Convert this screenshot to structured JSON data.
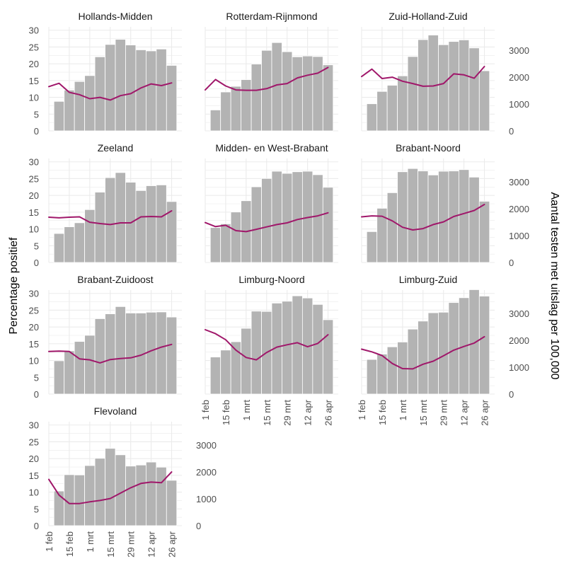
{
  "chart_data": {
    "type": "bar",
    "ylabel": "Percentage positief",
    "y2label": "Aantal testen met uitslag per 100,000",
    "xlabel": "",
    "x_ticks": [
      "1 feb",
      "15 feb",
      "1 mrt",
      "15 mrt",
      "29 mrt",
      "12 apr",
      "26 apr"
    ],
    "y_ticks": [
      "0",
      "5",
      "10",
      "15",
      "20",
      "25",
      "30"
    ],
    "y2_ticks": [
      "0",
      "1000",
      "2000",
      "3000"
    ],
    "ylim": [
      0,
      31
    ],
    "y2lim": [
      0,
      3875
    ],
    "grid": true,
    "weeks": 13,
    "colors": {
      "bar": "#b3b3b3",
      "line": "#a0176a",
      "grid": "#ebebeb"
    },
    "bar_series_name": "Aantal testen met uitslag per 100,000",
    "line_series_name": "Percentage positief",
    "facets": [
      {
        "name": "Hollands-Midden",
        "bars": [
          1100,
          1520,
          1840,
          2060,
          2760,
          3220,
          3410,
          3200,
          3020,
          2980,
          3050,
          2440
        ],
        "line": [
          13.2,
          14.2,
          11.5,
          10.8,
          9.6,
          10.0,
          9.2,
          10.5,
          11.1,
          12.8,
          14.0,
          13.5,
          14.3
        ]
      },
      {
        "name": "Rotterdam-Rijnmond",
        "bars": [
          780,
          1450,
          1660,
          1910,
          2490,
          3000,
          3290,
          2950,
          2760,
          2790,
          2770,
          2460
        ],
        "line": [
          12.2,
          15.3,
          13.4,
          12.2,
          12.1,
          12.1,
          12.6,
          13.7,
          14.1,
          15.8,
          16.6,
          17.2,
          18.9
        ]
      },
      {
        "name": "Zuid-Holland-Zuid",
        "bars": [
          1010,
          1470,
          1700,
          2050,
          2770,
          3400,
          3570,
          3210,
          3330,
          3390,
          3090,
          2240
        ],
        "line": [
          16.2,
          18.4,
          15.6,
          16.0,
          14.8,
          14.1,
          13.3,
          13.4,
          14.1,
          17.0,
          16.7,
          15.7,
          19.2
        ]
      },
      {
        "name": "Zeeland",
        "bars": [
          1080,
          1330,
          1480,
          1970,
          2620,
          3160,
          3350,
          2990,
          2680,
          2860,
          2890,
          2270
        ],
        "line": [
          13.5,
          13.3,
          13.5,
          13.6,
          12.0,
          11.6,
          11.3,
          11.8,
          11.8,
          13.6,
          13.7,
          13.6,
          15.4
        ]
      },
      {
        "name": "Midden- en West-Brabant",
        "bars": [
          1300,
          1440,
          1880,
          2300,
          2820,
          3130,
          3400,
          3320,
          3380,
          3400,
          3270,
          2800
        ],
        "line": [
          11.9,
          10.7,
          11.1,
          9.5,
          9.2,
          9.9,
          10.6,
          11.3,
          11.8,
          12.8,
          13.4,
          13.9,
          14.8
        ]
      },
      {
        "name": "Brabant-Noord",
        "bars": [
          1150,
          2020,
          2600,
          3380,
          3500,
          3410,
          3260,
          3400,
          3410,
          3460,
          3180,
          2280
        ],
        "line": [
          13.6,
          13.9,
          13.8,
          12.4,
          10.5,
          9.7,
          10.1,
          11.3,
          12.1,
          13.7,
          14.6,
          15.5,
          17.3
        ]
      },
      {
        "name": "Brabant-Zuidoost",
        "bars": [
          1240,
          1610,
          1960,
          2190,
          2810,
          2990,
          3260,
          3020,
          3020,
          3050,
          3060,
          2870
        ],
        "line": [
          12.7,
          12.8,
          12.7,
          10.5,
          10.2,
          9.3,
          10.3,
          10.6,
          10.8,
          11.6,
          12.9,
          14.0,
          14.8
        ]
      },
      {
        "name": "Limburg-Noord",
        "bars": [
          1380,
          1640,
          1950,
          2450,
          3090,
          3080,
          3390,
          3460,
          3660,
          3580,
          3340,
          2770
        ],
        "line": [
          19.2,
          18.0,
          16.2,
          13.1,
          10.9,
          10.2,
          12.4,
          14.0,
          14.7,
          15.3,
          14.1,
          15.1,
          17.7
        ]
      },
      {
        "name": "Limburg-Zuid",
        "bars": [
          1290,
          1490,
          1760,
          1940,
          2420,
          2720,
          3030,
          3050,
          3410,
          3590,
          3890,
          3650
        ],
        "line": [
          13.4,
          12.6,
          11.5,
          9.1,
          7.6,
          7.5,
          8.9,
          9.8,
          11.4,
          13.1,
          14.2,
          15.2,
          17.1
        ]
      },
      {
        "name": "Flevoland",
        "bars": [
          1290,
          1900,
          1890,
          2240,
          2510,
          2880,
          2640,
          2220,
          2260,
          2370,
          2180,
          1690
        ],
        "line": [
          13.8,
          9.1,
          6.6,
          6.6,
          7.1,
          7.5,
          8.1,
          9.7,
          11.3,
          12.6,
          13.0,
          12.8,
          16.0
        ]
      }
    ]
  }
}
